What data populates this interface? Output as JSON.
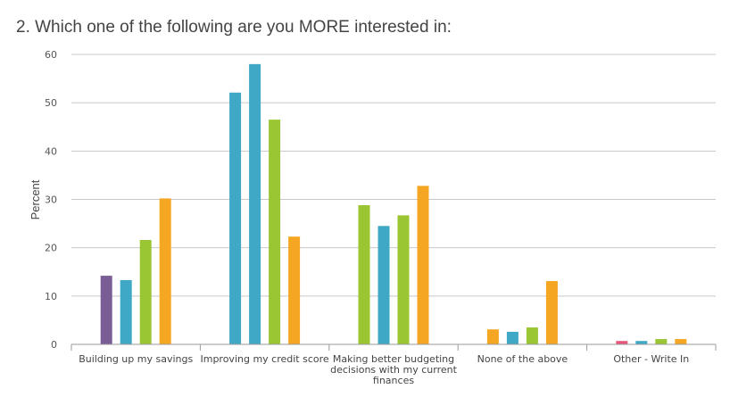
{
  "question": {
    "title": "2. Which one of the following are you MORE interested in:"
  },
  "chart_data": {
    "type": "bar",
    "title": "2. Which one of the following are you MORE interested in:",
    "xlabel": "",
    "ylabel": "Percent",
    "ylim": [
      0,
      60
    ],
    "yticks": [
      0,
      10,
      20,
      30,
      40,
      50,
      60
    ],
    "grid": true,
    "legend": "none",
    "categories": [
      [
        "Building up my savings"
      ],
      [
        "Improving my credit score"
      ],
      [
        "Making better budgeting",
        "decisions with my current",
        "finances"
      ],
      [
        "None of the above"
      ],
      [
        "Other - Write In"
      ]
    ],
    "bars": [
      [
        {
          "value": 14.2,
          "color": "#7b5d96"
        },
        {
          "value": 13.3,
          "color": "#3fa8c7"
        },
        {
          "value": 21.6,
          "color": "#9ac634"
        },
        {
          "value": 30.2,
          "color": "#f5a623"
        }
      ],
      [
        {
          "value": 52.1,
          "color": "#3fa8c7"
        },
        {
          "value": 58.0,
          "color": "#3fa8c7"
        },
        {
          "value": 46.5,
          "color": "#9ac634"
        },
        {
          "value": 22.3,
          "color": "#f5a623"
        }
      ],
      [
        {
          "value": 28.8,
          "color": "#9ac634"
        },
        {
          "value": 24.5,
          "color": "#3fa8c7"
        },
        {
          "value": 26.7,
          "color": "#9ac634"
        },
        {
          "value": 32.8,
          "color": "#f5a623"
        }
      ],
      [
        {
          "value": 3.1,
          "color": "#f5a623"
        },
        {
          "value": 2.6,
          "color": "#3fa8c7"
        },
        {
          "value": 3.5,
          "color": "#9ac634"
        },
        {
          "value": 13.1,
          "color": "#f5a623"
        }
      ],
      [
        {
          "value": 0.7,
          "color": "#e8577a"
        },
        {
          "value": 0.7,
          "color": "#3fa8c7"
        },
        {
          "value": 1.1,
          "color": "#9ac634"
        },
        {
          "value": 1.1,
          "color": "#f5a623"
        }
      ]
    ],
    "colors": {
      "grid": "#c8c8c8",
      "axis": "#9a9a9a"
    }
  }
}
